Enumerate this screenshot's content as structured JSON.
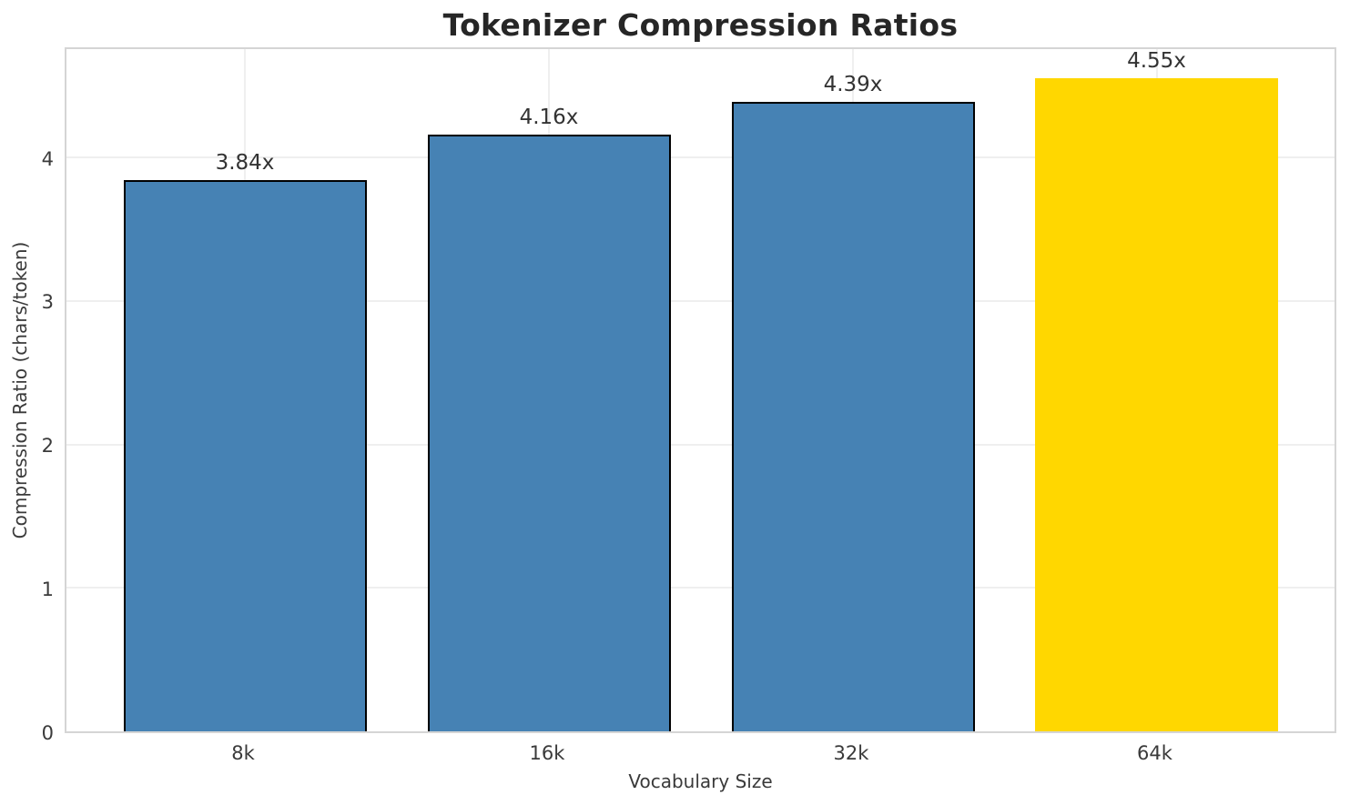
{
  "page": {
    "background": "#ffffff"
  },
  "chart_data": {
    "type": "bar",
    "title": "Tokenizer Compression Ratios",
    "xlabel": "Vocabulary Size",
    "ylabel": "Compression Ratio (chars/token)",
    "categories": [
      "8k",
      "16k",
      "32k",
      "64k"
    ],
    "values": [
      3.84,
      4.16,
      4.39,
      4.55
    ],
    "bar_labels": [
      "3.84x",
      "4.16x",
      "4.39x",
      "4.55x"
    ],
    "bar_colors": [
      "#4682b4",
      "#4682b4",
      "#4682b4",
      "#ffd700"
    ],
    "bar_edge_colors": [
      "#000000",
      "#000000",
      "#000000",
      "none"
    ],
    "yticks": [
      0,
      1,
      2,
      3,
      4
    ],
    "ylim": [
      0,
      4.78
    ],
    "grid": true,
    "grid_axes": "both",
    "legend": false,
    "colors": {
      "grid": "#efefef",
      "spine": "#d5d5d5",
      "title_text": "#262626",
      "tick_text": "#3a3a3a",
      "label_text": "#333333"
    }
  }
}
